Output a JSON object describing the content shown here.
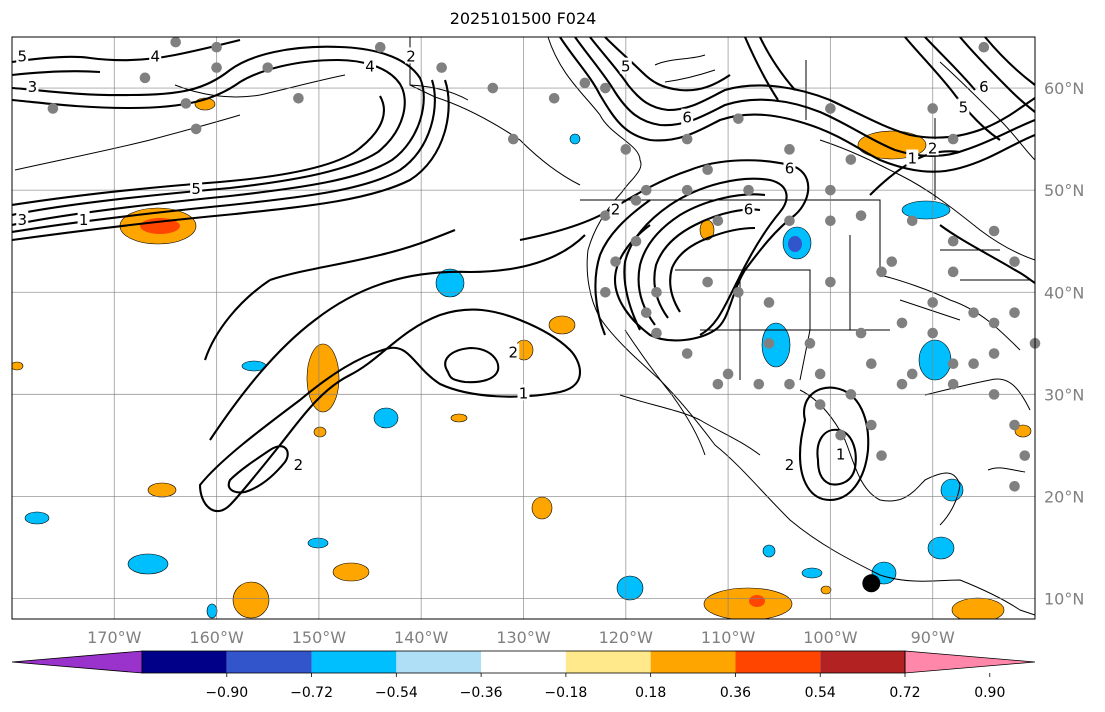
{
  "header": {
    "title": "2025101500 F024"
  },
  "map": {
    "projection": "Equirectangular",
    "lon_range": [
      -180,
      -80
    ],
    "lat_range": [
      8,
      65
    ],
    "lon_ticks": [
      {
        "value": -170,
        "label": "170°W"
      },
      {
        "value": -160,
        "label": "160°W"
      },
      {
        "value": -150,
        "label": "150°W"
      },
      {
        "value": -140,
        "label": "140°W"
      },
      {
        "value": -130,
        "label": "130°W"
      },
      {
        "value": -120,
        "label": "120°W"
      },
      {
        "value": -110,
        "label": "110°W"
      },
      {
        "value": -100,
        "label": "100°W"
      },
      {
        "value": -90,
        "label": "90°W"
      }
    ],
    "lat_ticks": [
      {
        "value": 10,
        "label": "10°N"
      },
      {
        "value": 20,
        "label": "20°N"
      },
      {
        "value": 30,
        "label": "30°N"
      },
      {
        "value": 40,
        "label": "40°N"
      },
      {
        "value": 50,
        "label": "50°N"
      },
      {
        "value": 60,
        "label": "60°N"
      }
    ],
    "contour_labels": [
      {
        "text": "5",
        "lon": -179,
        "lat": 63
      },
      {
        "text": "3",
        "lon": -178,
        "lat": 60
      },
      {
        "text": "4",
        "lon": -166,
        "lat": 63
      },
      {
        "text": "2",
        "lon": -141,
        "lat": 63
      },
      {
        "text": "4",
        "lon": -145,
        "lat": 62
      },
      {
        "text": "3",
        "lon": -179,
        "lat": 47
      },
      {
        "text": "5",
        "lon": -162,
        "lat": 50
      },
      {
        "text": "1",
        "lon": -173,
        "lat": 47
      },
      {
        "text": "2",
        "lon": -121,
        "lat": 48
      },
      {
        "text": "6",
        "lon": -114,
        "lat": 57
      },
      {
        "text": "5",
        "lon": -120,
        "lat": 62
      },
      {
        "text": "6",
        "lon": -108,
        "lat": 48
      },
      {
        "text": "6",
        "lon": -104,
        "lat": 52
      },
      {
        "text": "2",
        "lon": -131,
        "lat": 34
      },
      {
        "text": "1",
        "lon": -130,
        "lat": 30
      },
      {
        "text": "2",
        "lon": -104,
        "lat": 23
      },
      {
        "text": "1",
        "lon": -99,
        "lat": 24
      },
      {
        "text": "2",
        "lon": -152,
        "lat": 23
      },
      {
        "text": "6",
        "lon": -85,
        "lat": 60
      },
      {
        "text": "5",
        "lon": -87,
        "lat": 58
      },
      {
        "text": "2",
        "lon": -90,
        "lat": 54
      },
      {
        "text": "1",
        "lon": -92,
        "lat": 53
      }
    ],
    "marker": {
      "name": "black-dot",
      "lon": -96,
      "lat": 11.5
    },
    "colors": {
      "contour": "#000000",
      "grid": "#808080",
      "station": "#808080",
      "coast": "#000000"
    }
  },
  "colorbar": {
    "ticks": [
      "−0.90",
      "−0.72",
      "−0.54",
      "−0.36",
      "−0.18",
      "0.18",
      "0.36",
      "0.54",
      "0.72",
      "0.90"
    ],
    "colors": [
      "#9933cc",
      "#000088",
      "#3355cc",
      "#00bfff",
      "#aedff7",
      "#ffffff",
      "#ffe98a",
      "#ffa500",
      "#ff4500",
      "#b22222",
      "#ff88aa"
    ]
  }
}
